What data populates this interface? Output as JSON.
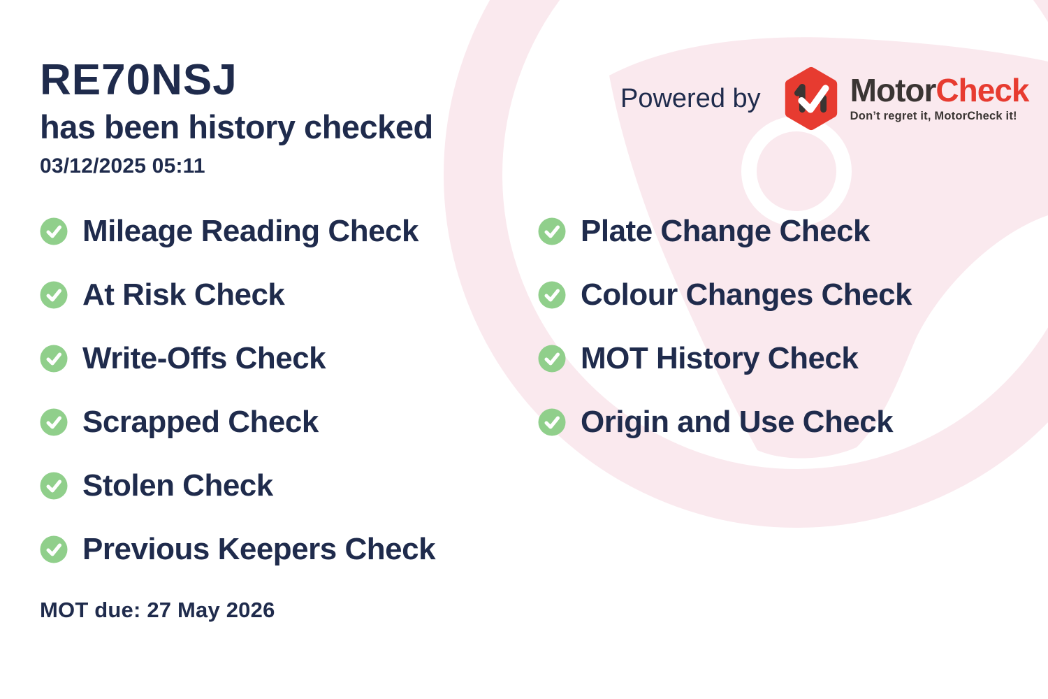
{
  "card": {
    "registration": "RE70NSJ",
    "subtitle": "has been history checked",
    "checked_at": "03/12/2025 05:11",
    "mot_due": "MOT due: 27 May 2026"
  },
  "powered_by": {
    "label": "Powered by",
    "brand": {
      "part1": "Motor",
      "part2": "Check"
    },
    "tagline": "Don’t regret it, MotorCheck it!",
    "logo_icon": "motorcheck-hexagon-check-icon"
  },
  "checks": {
    "left": [
      "Mileage Reading Check",
      "At Risk Check",
      "Write-Offs Check",
      "Scrapped Check",
      "Stolen Check",
      "Previous Keepers Check"
    ],
    "right": [
      "Plate Change Check",
      "Colour Changes Check",
      "MOT History Check",
      "Origin and Use Check"
    ]
  },
  "colors": {
    "navy": "#1f2b4c",
    "check_green": "#90cf8b",
    "wheel_pink": "#fae9ee",
    "brand_red": "#e73b30",
    "brand_dark": "#3a3533",
    "background": "#ffffff"
  },
  "background_graphic": "steering-wheel-watermark"
}
